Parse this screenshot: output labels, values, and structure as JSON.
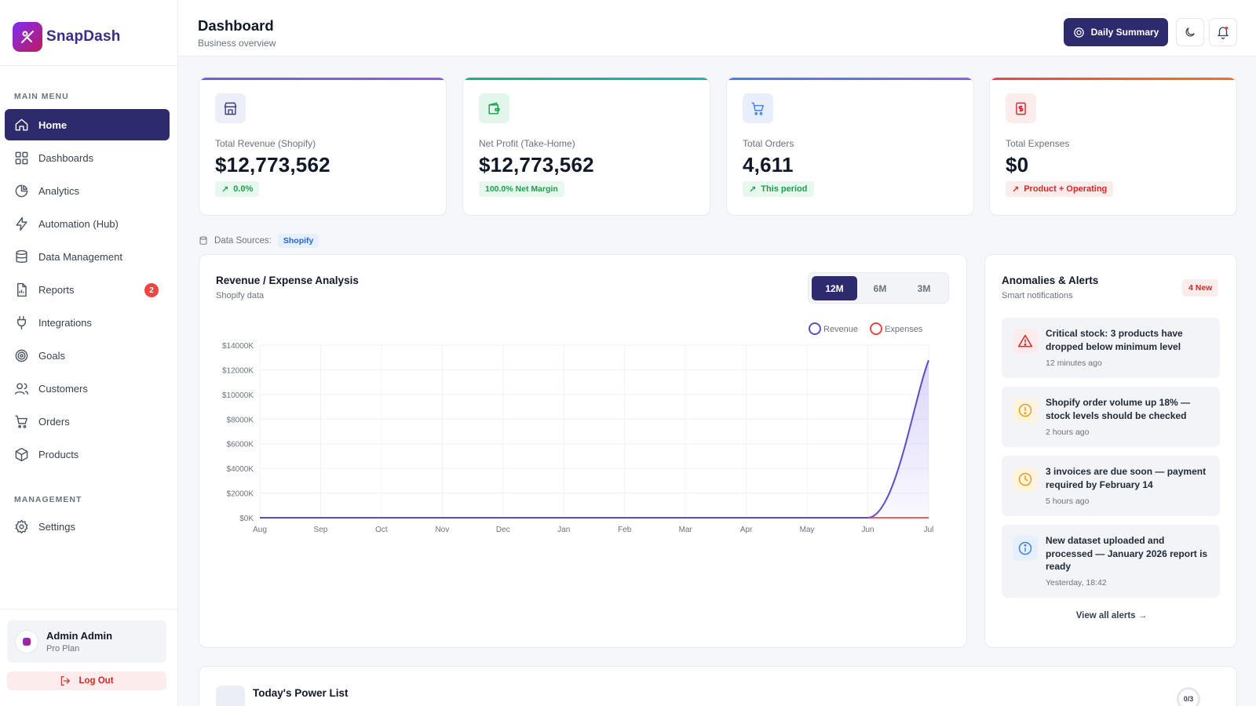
{
  "app": {
    "name": "SnapDash"
  },
  "sidebar": {
    "main_menu_label": "MAIN MENU",
    "items": [
      {
        "label": "Home",
        "icon": "home-icon"
      },
      {
        "label": "Dashboards",
        "icon": "grid-icon"
      },
      {
        "label": "Analytics",
        "icon": "pie-chart-icon"
      },
      {
        "label": "Automation (Hub)",
        "icon": "lightning-icon"
      },
      {
        "label": "Data Management",
        "icon": "database-icon"
      },
      {
        "label": "Reports",
        "icon": "file-icon",
        "badge": "2"
      },
      {
        "label": "Integrations",
        "icon": "plug-icon"
      },
      {
        "label": "Goals",
        "icon": "target-icon"
      },
      {
        "label": "Customers",
        "icon": "users-icon"
      },
      {
        "label": "Orders",
        "icon": "cart-icon"
      },
      {
        "label": "Products",
        "icon": "box-icon"
      }
    ],
    "management_label": "MANAGEMENT",
    "management_items": [
      {
        "label": "Settings",
        "icon": "gear-icon"
      }
    ],
    "user": {
      "name": "Admin Admin",
      "plan": "Pro Plan"
    },
    "logout_label": "Log Out"
  },
  "header": {
    "title": "Dashboard",
    "subtitle": "Business overview",
    "summary_label": "Daily Summary"
  },
  "stats": [
    {
      "label": "Total Revenue (Shopify)",
      "value": "$12,773,562",
      "pill": "0.0%",
      "accent": "#6d5ce8",
      "icon": "store-icon"
    },
    {
      "label": "Net Profit (Take-Home)",
      "value": "$12,773,562",
      "pill": "100.0% Net Margin",
      "accent": "#14b8a6",
      "icon": "wallet-icon"
    },
    {
      "label": "Total Orders",
      "value": "4,611",
      "pill": "This period",
      "accent": "#6366f1",
      "icon": "cart-icon"
    },
    {
      "label": "Total Expenses",
      "value": "$0",
      "pill": "Product + Operating",
      "accent": "#ef4444",
      "icon": "receipt-icon"
    }
  ],
  "data_sources": {
    "label": "Data Sources:",
    "chip": "Shopify"
  },
  "chart_card": {
    "title": "Revenue / Expense Analysis",
    "subtitle": "Shopify data",
    "ranges": [
      "12M",
      "6M",
      "3M"
    ],
    "active_range": "12M"
  },
  "chart_data": {
    "type": "area",
    "categories": [
      "Aug",
      "Sep",
      "Oct",
      "Nov",
      "Dec",
      "Jan",
      "Feb",
      "Mar",
      "Apr",
      "May",
      "Jun",
      "Jul"
    ],
    "series": [
      {
        "name": "Revenue",
        "color": "#5b4ccf",
        "values": [
          0,
          0,
          0,
          0,
          0,
          0,
          0,
          0,
          0,
          0,
          0,
          12773.562
        ]
      },
      {
        "name": "Expenses",
        "color": "#ef4444",
        "values": [
          0,
          0,
          0,
          0,
          0,
          0,
          0,
          0,
          0,
          0,
          0,
          0
        ]
      }
    ],
    "yticks": [
      "$0K",
      "$2000K",
      "$4000K",
      "$6000K",
      "$8000K",
      "$10000K",
      "$12000K",
      "$14000K"
    ],
    "ylim": [
      0,
      14000
    ],
    "legend": "top-right",
    "grid": true
  },
  "alerts": {
    "title": "Anomalies & Alerts",
    "subtitle": "Smart notifications",
    "badge": "4 New",
    "items": [
      {
        "text": "Critical stock: 3 products have dropped below minimum level",
        "time": "12 minutes ago",
        "icon": "warning-triangle-icon",
        "color": "#dc2626"
      },
      {
        "text": "Shopify order volume up 18% — stock levels should be checked",
        "time": "2 hours ago",
        "icon": "alert-circle-icon",
        "color": "#f59e0b"
      },
      {
        "text": "3 invoices are due soon — payment required by February 14",
        "time": "5 hours ago",
        "icon": "clock-icon",
        "color": "#f59e0b"
      },
      {
        "text": "New dataset uploaded and processed — January 2026 report is ready",
        "time": "Yesterday, 18:42",
        "icon": "info-icon",
        "color": "#3b82f6"
      }
    ],
    "view_all": "View all alerts →"
  },
  "power_list": {
    "title": "Today's Power List",
    "progress": "0/3"
  }
}
